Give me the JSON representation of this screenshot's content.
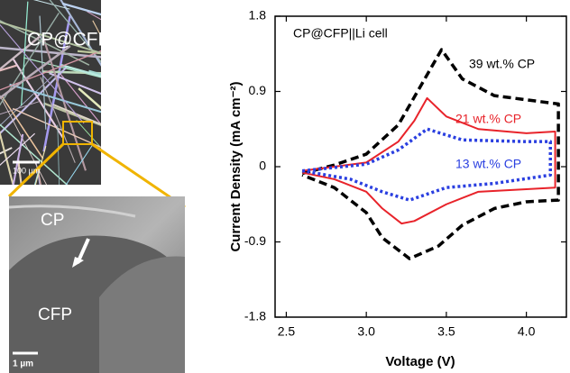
{
  "chart_data": {
    "type": "line",
    "title": "CP@CFP||Li cell",
    "x_label": "Voltage (V)",
    "y_label": "Current Density (mA cm⁻²)",
    "xlim": [
      2.43,
      4.25
    ],
    "ylim": [
      -1.8,
      1.8
    ],
    "xticks": [
      2.5,
      {
        "value": 3,
        "label": "3.0"
      },
      3.5,
      {
        "value": 4,
        "label": "4.0"
      }
    ],
    "yticks": [
      -1.8,
      -0.9,
      0,
      0.9,
      1.8
    ],
    "series": [
      {
        "name": "39 wt.% CP",
        "color": "#000000",
        "dash": "dashed",
        "x": [
          2.6,
          2.8,
          3.0,
          3.2,
          3.35,
          3.47,
          3.6,
          3.8,
          4.0,
          4.2,
          4.2,
          4.0,
          3.8,
          3.6,
          3.45,
          3.27,
          3.1,
          3.0,
          2.8,
          2.6
        ],
        "values": [
          -0.08,
          0.02,
          0.15,
          0.5,
          1.0,
          1.4,
          1.05,
          0.85,
          0.8,
          0.75,
          -0.4,
          -0.42,
          -0.5,
          -0.7,
          -0.95,
          -1.1,
          -0.85,
          -0.55,
          -0.25,
          -0.1
        ]
      },
      {
        "name": "21 wt.% CP",
        "color": "#e8232a",
        "dash": "solid",
        "x": [
          2.6,
          3.0,
          3.2,
          3.3,
          3.38,
          3.5,
          3.7,
          4.0,
          4.18,
          4.18,
          4.0,
          3.7,
          3.5,
          3.3,
          3.22,
          3.1,
          3.0,
          2.8,
          2.6
        ],
        "values": [
          -0.05,
          0.05,
          0.3,
          0.55,
          0.82,
          0.6,
          0.45,
          0.4,
          0.42,
          -0.25,
          -0.27,
          -0.3,
          -0.45,
          -0.65,
          -0.68,
          -0.5,
          -0.3,
          -0.15,
          -0.07
        ]
      },
      {
        "name": "13 wt.% CP",
        "color": "#2a3fe0",
        "dash": "dotted",
        "x": [
          2.6,
          3.0,
          3.2,
          3.38,
          3.6,
          4.0,
          4.15,
          4.15,
          3.8,
          3.5,
          3.27,
          3.1,
          2.9,
          2.6
        ],
        "values": [
          -0.05,
          0.03,
          0.2,
          0.45,
          0.32,
          0.3,
          0.3,
          -0.1,
          -0.2,
          -0.25,
          -0.4,
          -0.3,
          -0.15,
          -0.05
        ]
      }
    ]
  },
  "micrographs": {
    "top": {
      "label": "CP@CFP",
      "scale_bar": "100 µm"
    },
    "bottom": {
      "label_upper": "CP",
      "label_lower": "CFP",
      "scale_bar": "1 µm"
    }
  }
}
